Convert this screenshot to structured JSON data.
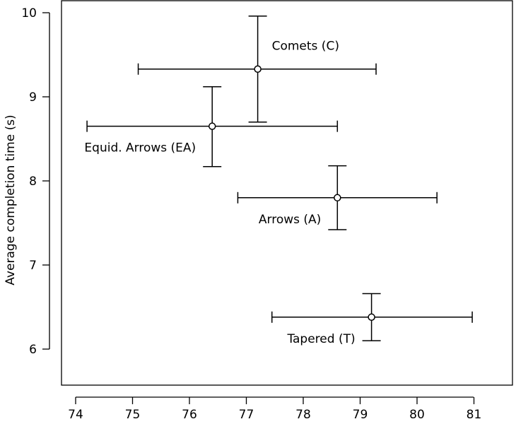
{
  "chart_data": {
    "type": "scatter",
    "title": "",
    "xlabel": "",
    "ylabel": "Average completion time (s)",
    "xlim": [
      73.85,
      81.75
    ],
    "ylim": [
      5.55,
      10.1
    ],
    "xticks": [
      74,
      75,
      76,
      77,
      78,
      79,
      80,
      81
    ],
    "yticks": [
      6,
      7,
      8,
      9,
      10
    ],
    "grid": false,
    "points": [
      {
        "label": "Comets (C)",
        "x": 77.2,
        "y": 9.33,
        "xerr": [
          75.1,
          79.28
        ],
        "yerr": [
          8.7,
          9.96
        ],
        "label_position": "upper-right"
      },
      {
        "label": "Equid. Arrows (EA)",
        "x": 76.4,
        "y": 8.65,
        "xerr": [
          74.2,
          78.6
        ],
        "yerr": [
          8.17,
          9.12
        ],
        "label_position": "lower-left"
      },
      {
        "label": "Arrows (A)",
        "x": 78.6,
        "y": 7.8,
        "xerr": [
          76.85,
          80.35
        ],
        "yerr": [
          7.42,
          8.18
        ],
        "label_position": "lower-left"
      },
      {
        "label": "Tapered (T)",
        "x": 79.2,
        "y": 6.38,
        "xerr": [
          77.45,
          80.97
        ],
        "yerr": [
          6.1,
          6.66
        ],
        "label_position": "lower-left"
      }
    ]
  }
}
